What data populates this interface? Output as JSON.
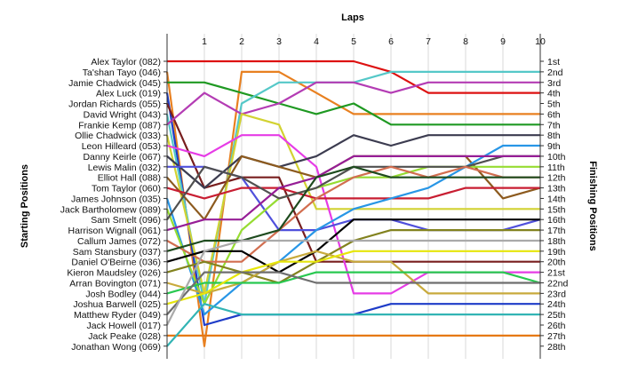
{
  "chart_data": {
    "type": "line",
    "title": "",
    "xlabel": "Laps",
    "ylabel_left": "Starting Positions",
    "ylabel_right": "Finishing Positions",
    "grid": true,
    "laps": [
      0,
      1,
      2,
      3,
      4,
      5,
      6,
      7,
      8,
      9,
      10
    ],
    "lap_labels": [
      "1",
      "2",
      "3",
      "4",
      "5",
      "6",
      "7",
      "8",
      "9",
      "10"
    ],
    "finish_labels": [
      "1st",
      "2nd",
      "3rd",
      "4th",
      "5th",
      "6th",
      "7th",
      "8th",
      "9th",
      "10th",
      "11th",
      "12th",
      "13th",
      "14th",
      "15th",
      "16th",
      "17th",
      "18th",
      "19th",
      "20th",
      "21st",
      "22nd",
      "23rd",
      "24th",
      "25th",
      "26th",
      "27th",
      "28th"
    ],
    "series": [
      {
        "name": "Alex Taylor (082)",
        "color": "#dd1111",
        "positions": [
          1,
          1,
          1,
          1,
          1,
          1,
          2,
          4,
          4,
          4,
          4
        ]
      },
      {
        "name": "Ta'shan Tayo (046)",
        "color": "#e88020",
        "positions": [
          2,
          28,
          2,
          2,
          4,
          6,
          6,
          6,
          6,
          6,
          6
        ]
      },
      {
        "name": "Jamie Chadwick (045)",
        "color": "#1f9922",
        "positions": [
          3,
          3,
          4,
          5,
          6,
          5,
          7,
          7,
          7,
          7,
          7
        ]
      },
      {
        "name": "Alex Luck (019)",
        "color": "#1e3cc8",
        "positions": [
          4,
          26,
          25,
          25,
          25,
          25,
          24,
          24,
          24,
          24,
          24
        ]
      },
      {
        "name": "Jordan Richards (055)",
        "color": "#781e1e",
        "positions": [
          5,
          13,
          12,
          12,
          20,
          20,
          20,
          20,
          20,
          20,
          20
        ]
      },
      {
        "name": "David Wright (043)",
        "color": "#55c8c8",
        "positions": [
          6,
          24,
          5,
          3,
          3,
          3,
          2,
          2,
          2,
          2,
          2
        ]
      },
      {
        "name": "Frankie Kemp (087)",
        "color": "#b43cb4",
        "positions": [
          7,
          4,
          6,
          5,
          3,
          3,
          4,
          3,
          3,
          3,
          3
        ]
      },
      {
        "name": "Ollie Chadwick (033)",
        "color": "#d2d232",
        "positions": [
          8,
          23,
          6,
          7,
          15,
          15,
          15,
          15,
          15,
          15,
          15
        ]
      },
      {
        "name": "Leon Hilleard (053)",
        "color": "#e63ce6",
        "positions": [
          9,
          10,
          8,
          8,
          11,
          23,
          23,
          21,
          21,
          21,
          21
        ]
      },
      {
        "name": "Danny Keirle (067)",
        "color": "#3c3c50",
        "positions": [
          10,
          13,
          10,
          11,
          10,
          8,
          9,
          8,
          8,
          8,
          8
        ]
      },
      {
        "name": "Lewis Malin (032)",
        "color": "#5050dc",
        "positions": [
          11,
          11,
          12,
          17,
          17,
          16,
          16,
          17,
          17,
          17,
          16
        ]
      },
      {
        "name": "Elliot Hall (088)",
        "color": "#8c5a1e",
        "positions": [
          12,
          16,
          10,
          11,
          12,
          10,
          10,
          10,
          10,
          14,
          13
        ]
      },
      {
        "name": "Tom Taylor (060)",
        "color": "#c81e32",
        "positions": [
          13,
          14,
          13,
          13,
          14,
          14,
          14,
          14,
          13,
          13,
          13
        ]
      },
      {
        "name": "James Johnson (035)",
        "color": "#2896e6",
        "positions": [
          14,
          25,
          22,
          20,
          17,
          15,
          14,
          13,
          11,
          9,
          9
        ]
      },
      {
        "name": "Jack Bartholomew (089)",
        "color": "#96dc32",
        "positions": [
          15,
          24,
          17,
          14,
          13,
          12,
          12,
          11,
          11,
          11,
          11
        ]
      },
      {
        "name": "Sam Smelt (096)",
        "color": "#505050",
        "positions": [
          16,
          11,
          12,
          14,
          13,
          11,
          11,
          11,
          11,
          10,
          10
        ]
      },
      {
        "name": "Harrison Wignall (061)",
        "color": "#961e96",
        "positions": [
          17,
          16,
          16,
          13,
          12,
          10,
          10,
          10,
          10,
          10,
          10
        ]
      },
      {
        "name": "Callum James (072)",
        "color": "#d26e50",
        "positions": [
          18,
          20,
          20,
          17,
          14,
          12,
          11,
          12,
          11,
          12,
          12
        ]
      },
      {
        "name": "Sam Stansbury (037)",
        "color": "#1e4b1e",
        "positions": [
          19,
          18,
          18,
          17,
          12,
          11,
          12,
          12,
          12,
          12,
          12
        ]
      },
      {
        "name": "Daniel O'Beirne (036)",
        "color": "#000000",
        "positions": [
          20,
          19,
          19,
          21,
          19,
          16,
          16,
          16,
          16,
          16,
          16
        ]
      },
      {
        "name": "Kieron Maudsley (026)",
        "color": "#82821e",
        "positions": [
          21,
          20,
          21,
          22,
          20,
          18,
          17,
          17,
          17,
          17,
          17
        ]
      },
      {
        "name": "Arran Bovington (071)",
        "color": "#c8aa3c",
        "positions": [
          22,
          23,
          22,
          20,
          19,
          20,
          20,
          23,
          23,
          23,
          23
        ]
      },
      {
        "name": "Josh Bodley (044)",
        "color": "#28c850",
        "positions": [
          23,
          22,
          22,
          22,
          21,
          21,
          21,
          21,
          21,
          21,
          22
        ]
      },
      {
        "name": "Joshua Barwell (025)",
        "color": "#e6e60a",
        "positions": [
          24,
          23,
          21,
          20,
          20,
          19,
          19,
          19,
          19,
          19,
          19
        ]
      },
      {
        "name": "Matthew Ryder (049)",
        "color": "#6e6e6e",
        "positions": [
          25,
          21,
          21,
          21,
          22,
          22,
          22,
          22,
          22,
          22,
          22
        ]
      },
      {
        "name": "Jack Howell (017)",
        "color": "#aaaaaa",
        "positions": [
          26,
          19,
          18,
          18,
          18,
          18,
          18,
          18,
          18,
          18,
          18
        ]
      },
      {
        "name": "Jack Peake (028)",
        "color": "#e67814",
        "positions": [
          27,
          27,
          27,
          27,
          27,
          27,
          27,
          27,
          27,
          27,
          27
        ]
      },
      {
        "name": "Jonathan Wong (069)",
        "color": "#32b4b4",
        "positions": [
          28,
          24,
          25,
          25,
          25,
          25,
          25,
          25,
          25,
          25,
          25
        ]
      }
    ]
  }
}
